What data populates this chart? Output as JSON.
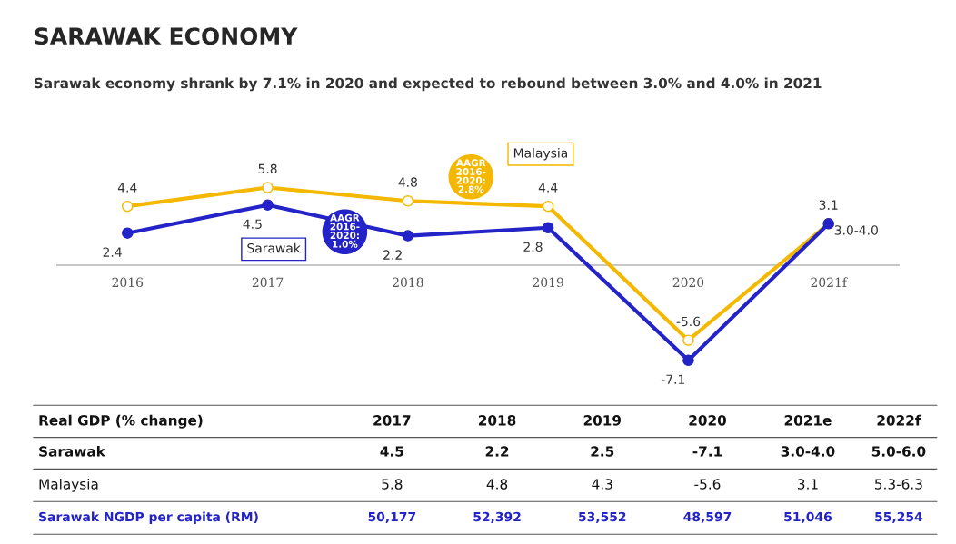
{
  "chart_data": {
    "type": "line",
    "title": "SARAWAK ECONOMY",
    "subtitle": "Sarawak economy shrank by 7.1% in 2020 and expected to rebound between 3.0% and 4.0% in 2021",
    "categories": [
      "2016",
      "2017",
      "2018",
      "2019",
      "2020",
      "2021f"
    ],
    "series": [
      {
        "name": "Malaysia",
        "color": "#f5b800",
        "values": [
          4.4,
          5.8,
          4.8,
          4.4,
          -5.6,
          3.1
        ],
        "value_labels": [
          "4.4",
          "5.8",
          "4.8",
          "4.4",
          "-5.6",
          "3.1"
        ]
      },
      {
        "name": "Sarawak",
        "color": "#2323c8",
        "values": [
          2.4,
          4.5,
          2.2,
          2.8,
          -7.1,
          3.1
        ],
        "value_labels": [
          "2.4",
          "4.5",
          "2.2",
          "2.8",
          "-7.1",
          "3.0-4.0"
        ]
      }
    ],
    "marker": "circle",
    "legend": false,
    "tick_labels": "x",
    "annotations": [
      "AAGR\n2016-\n2020:\n1.0%",
      "AAGR\n2016-\n2020:\n2.8%",
      "Real GDP (% change)",
      "2017",
      "2018",
      "2019",
      "2020",
      "2021e",
      "2022f",
      "Sarawak",
      "4.5",
      "2.2",
      "2.5",
      "-7.1",
      "3.0-4.0",
      "5.0-6.0",
      "Malaysia",
      "5.8",
      "4.8",
      "4.3",
      "-5.6",
      "3.1",
      "5.3-6.3",
      "Sarawak NGDP per capita (RM)",
      "50,177",
      "52,392",
      "53,552",
      "48,597",
      "51,046",
      "55,254"
    ]
  }
}
